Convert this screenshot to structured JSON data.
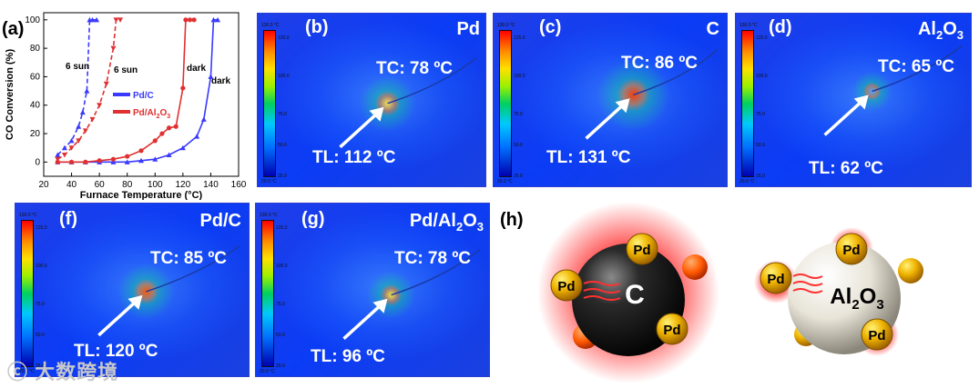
{
  "panel_a": {
    "label": "(a)",
    "chart_data": {
      "type": "line",
      "title": "",
      "xlabel": "Furnace Temperature (°C)",
      "ylabel": "CO Conversion (%)",
      "xlim": [
        20,
        160
      ],
      "ylim": [
        -10,
        105
      ],
      "xticks": [
        "20",
        "40",
        "60",
        "80",
        "100",
        "120",
        "140",
        "160"
      ],
      "yticks": [
        "0",
        "20",
        "40",
        "60",
        "80",
        "100"
      ],
      "legend": [
        "Pd/C",
        "Pd/Al2O3"
      ],
      "legend_position": "center-right",
      "annotations": [
        "6 sun",
        "6 sun",
        "dark",
        "dark"
      ],
      "series": [
        {
          "name": "Pd/C",
          "condition": "6 sun",
          "color": "#3a3aff",
          "style": "dashed",
          "x": [
            30,
            35,
            40,
            45,
            48,
            51,
            53,
            55,
            58
          ],
          "y": [
            5,
            10,
            15,
            25,
            35,
            50,
            100,
            100,
            100
          ]
        },
        {
          "name": "Pd/Al2O3",
          "condition": "6 sun",
          "color": "#e03030",
          "style": "dashed",
          "x": [
            30,
            35,
            40,
            45,
            50,
            55,
            60,
            65,
            70,
            72,
            75
          ],
          "y": [
            2,
            5,
            10,
            15,
            22,
            30,
            40,
            55,
            80,
            100,
            100
          ]
        },
        {
          "name": "Pd/C",
          "condition": "dark",
          "color": "#3a3aff",
          "style": "solid",
          "x": [
            30,
            40,
            50,
            60,
            70,
            80,
            90,
            100,
            110,
            120,
            130,
            135,
            140,
            142,
            145
          ],
          "y": [
            0,
            0,
            0,
            0,
            0,
            0,
            1,
            2,
            5,
            10,
            18,
            30,
            60,
            100,
            100
          ]
        },
        {
          "name": "Pd/Al2O3",
          "condition": "dark",
          "color": "#e03030",
          "style": "solid",
          "x": [
            30,
            40,
            50,
            60,
            70,
            80,
            90,
            100,
            105,
            110,
            115,
            120,
            122,
            125,
            128
          ],
          "y": [
            0,
            0,
            0,
            1,
            2,
            4,
            8,
            15,
            20,
            24,
            25,
            52,
            100,
            100,
            100
          ]
        }
      ]
    }
  },
  "colorbar": {
    "top_label": "130.0 °C",
    "bottom_label": "20.0 °C",
    "ticks": [
      "125.0",
      "100.0",
      "75.0",
      "50.0",
      "25.0"
    ]
  },
  "thermal_panels": [
    {
      "id": "b",
      "label": "(b)",
      "material": "Pd",
      "tc": "TC: 78 ºC",
      "tl": "TL: 112 ºC"
    },
    {
      "id": "c",
      "label": "(c)",
      "material": "C",
      "tc": "TC: 86 ºC",
      "tl": "TL: 131 ºC"
    },
    {
      "id": "d",
      "label": "(d)",
      "material_main": "Al",
      "material_sub": "2",
      "material_tail": "O",
      "material_sub2": "3",
      "tc": "TC: 65 ºC",
      "tl": "TL: 62 ºC"
    },
    {
      "id": "f",
      "label": "(f)",
      "material": "Pd/C",
      "tc": "TC: 85 ºC",
      "tl": "TL: 120 ºC"
    },
    {
      "id": "g",
      "label": "(g)",
      "material_main": "Pd/Al",
      "material_sub": "2",
      "material_tail": "O",
      "material_sub2": "3",
      "tc": "TC: 78 ºC",
      "tl": "TL: 96 ºC"
    }
  ],
  "panel_h": {
    "label": "(h)",
    "left": {
      "support": "C",
      "particle": "Pd"
    },
    "right": {
      "support_main": "Al",
      "support_sub": "2",
      "support_tail": "O",
      "support_sub2": "3",
      "particle": "Pd"
    }
  },
  "watermark": "大数跨境",
  "colors": {
    "pd_c": "#3a3aff",
    "pd_al2o3": "#e03030",
    "thermal_bg": "#0a3cf0",
    "hot": "#ff2a00"
  }
}
